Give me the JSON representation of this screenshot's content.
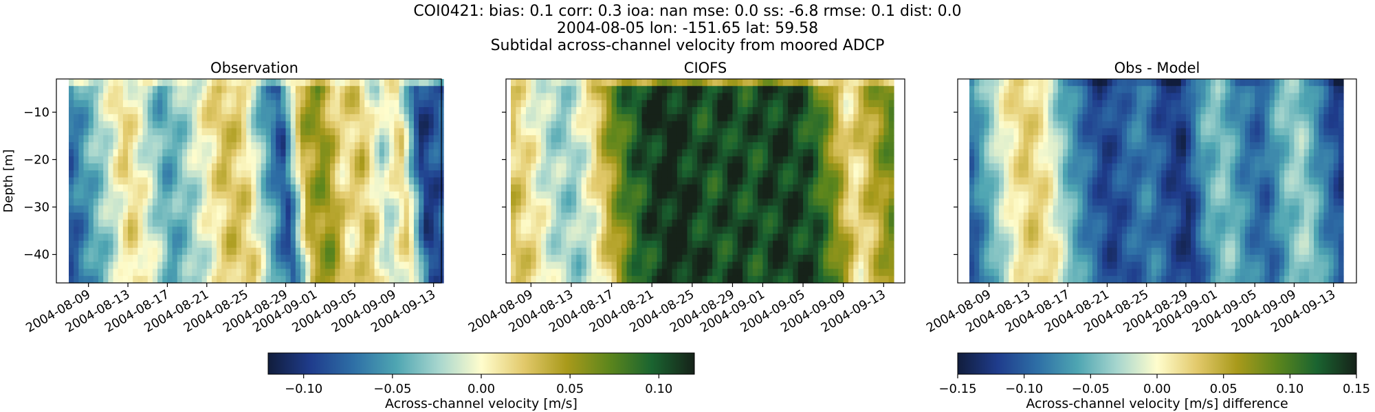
{
  "figure": {
    "title_lines": [
      "COI0421: bias: 0.1  corr: 0.3  ioa: nan  mse: 0.0  ss: -6.8  rmse: 0.1  dist: 0.0",
      "2004-08-05 lon: -151.65 lat: 59.58",
      "Subtidal across-channel velocity from moored ADCP"
    ]
  },
  "chart_data": [
    {
      "type": "heatmap",
      "title": "Observation",
      "ylabel": "Depth [m]",
      "xlabel": "",
      "x_range": [
        "2004-08-06",
        "2004-09-15"
      ],
      "ylim": [
        -46,
        -3
      ],
      "xtick_labels": [
        "2004-08-09",
        "2004-08-13",
        "2004-08-17",
        "2004-08-21",
        "2004-08-25",
        "2004-08-29",
        "2004-09-01",
        "2004-09-05",
        "2004-09-09",
        "2004-09-13"
      ],
      "ytick_labels": [
        "-10",
        "-20",
        "-30",
        "-40"
      ],
      "colormap": "delta",
      "clim": [
        -0.12,
        0.12
      ],
      "time_profile": [
        [
          "2004-08-07",
          -0.08
        ],
        [
          "2004-08-09",
          -0.05
        ],
        [
          "2004-08-11",
          -0.02
        ],
        [
          "2004-08-13",
          0.02
        ],
        [
          "2004-08-15",
          -0.01
        ],
        [
          "2004-08-17",
          -0.05
        ],
        [
          "2004-08-19",
          -0.03
        ],
        [
          "2004-08-21",
          0.0
        ],
        [
          "2004-08-23",
          0.03
        ],
        [
          "2004-08-25",
          0.02
        ],
        [
          "2004-08-27",
          -0.04
        ],
        [
          "2004-08-29",
          -0.09
        ],
        [
          "2004-08-31",
          0.04
        ],
        [
          "2004-09-02",
          0.06
        ],
        [
          "2004-09-04",
          0.01
        ],
        [
          "2004-09-06",
          0.03
        ],
        [
          "2004-09-08",
          -0.02
        ],
        [
          "2004-09-10",
          0.02
        ],
        [
          "2004-09-12",
          -0.1
        ],
        [
          "2004-09-14",
          -0.08
        ]
      ],
      "depth_weight": [
        [
          -4,
          1.0
        ],
        [
          -20,
          0.8
        ],
        [
          -35,
          0.55
        ],
        [
          -45,
          0.35
        ]
      ]
    },
    {
      "type": "heatmap",
      "title": "CIOFS",
      "ylabel": "",
      "xlabel": "",
      "x_range": [
        "2004-08-06",
        "2004-09-15"
      ],
      "ylim": [
        -46,
        -3
      ],
      "xtick_labels": [
        "2004-08-09",
        "2004-08-13",
        "2004-08-17",
        "2004-08-21",
        "2004-08-25",
        "2004-08-29",
        "2004-09-01",
        "2004-09-05",
        "2004-09-09",
        "2004-09-13"
      ],
      "ytick_labels": [],
      "colormap": "delta",
      "clim": [
        -0.12,
        0.12
      ],
      "time_profile": [
        [
          "2004-08-07",
          0.03
        ],
        [
          "2004-08-09",
          0.01
        ],
        [
          "2004-08-11",
          -0.02
        ],
        [
          "2004-08-13",
          -0.03
        ],
        [
          "2004-08-15",
          0.0
        ],
        [
          "2004-08-17",
          0.05
        ],
        [
          "2004-08-19",
          0.09
        ],
        [
          "2004-08-21",
          0.11
        ],
        [
          "2004-08-23",
          0.12
        ],
        [
          "2004-08-25",
          0.11
        ],
        [
          "2004-08-27",
          0.1
        ],
        [
          "2004-08-29",
          0.11
        ],
        [
          "2004-08-31",
          0.1
        ],
        [
          "2004-09-02",
          0.11
        ],
        [
          "2004-09-04",
          0.11
        ],
        [
          "2004-09-06",
          0.1
        ],
        [
          "2004-09-08",
          0.06
        ],
        [
          "2004-09-10",
          0.01
        ],
        [
          "2004-09-12",
          0.04
        ],
        [
          "2004-09-14",
          0.07
        ]
      ],
      "depth_weight": [
        [
          -4,
          1.0
        ],
        [
          -20,
          0.85
        ],
        [
          -35,
          0.6
        ],
        [
          -45,
          0.45
        ]
      ]
    },
    {
      "type": "heatmap",
      "title": "Obs - Model",
      "ylabel": "",
      "xlabel": "",
      "x_range": [
        "2004-08-06",
        "2004-09-15"
      ],
      "ylim": [
        -46,
        -3
      ],
      "xtick_labels": [
        "2004-08-09",
        "2004-08-13",
        "2004-08-17",
        "2004-08-21",
        "2004-08-25",
        "2004-08-29",
        "2004-09-01",
        "2004-09-05",
        "2004-09-09",
        "2004-09-13"
      ],
      "ytick_labels": [],
      "colormap": "delta",
      "clim": [
        -0.15,
        0.15
      ],
      "time_profile": [
        [
          "2004-08-07",
          -0.1
        ],
        [
          "2004-08-09",
          -0.05
        ],
        [
          "2004-08-11",
          0.0
        ],
        [
          "2004-08-13",
          0.03
        ],
        [
          "2004-08-15",
          0.01
        ],
        [
          "2004-08-17",
          -0.05
        ],
        [
          "2004-08-19",
          -0.09
        ],
        [
          "2004-08-21",
          -0.12
        ],
        [
          "2004-08-23",
          -0.1
        ],
        [
          "2004-08-25",
          -0.08
        ],
        [
          "2004-08-27",
          -0.11
        ],
        [
          "2004-08-29",
          -0.13
        ],
        [
          "2004-08-31",
          -0.06
        ],
        [
          "2004-09-02",
          -0.04
        ],
        [
          "2004-09-04",
          -0.08
        ],
        [
          "2004-09-06",
          -0.1
        ],
        [
          "2004-09-08",
          -0.05
        ],
        [
          "2004-09-10",
          -0.03
        ],
        [
          "2004-09-12",
          -0.08
        ],
        [
          "2004-09-14",
          -0.12
        ]
      ],
      "depth_weight": [
        [
          -4,
          1.0
        ],
        [
          -20,
          0.9
        ],
        [
          -35,
          1.0
        ],
        [
          -45,
          1.15
        ]
      ]
    }
  ],
  "colorbars": [
    {
      "label": "Across-channel velocity [m/s]",
      "range": [
        -0.12,
        0.12
      ],
      "tick_values": [
        -0.1,
        -0.05,
        0.0,
        0.05,
        0.1
      ],
      "tick_labels": [
        "−0.10",
        "−0.05",
        "0.00",
        "0.05",
        "0.10"
      ]
    },
    {
      "label": "Across-channel velocity [m/s] difference",
      "range": [
        -0.15,
        0.15
      ],
      "tick_values": [
        -0.15,
        -0.1,
        -0.05,
        0.0,
        0.05,
        0.1,
        0.15
      ],
      "tick_labels": [
        "−0.15",
        "−0.10",
        "−0.05",
        "0.00",
        "0.05",
        "0.10",
        "0.15"
      ]
    }
  ],
  "colors": {
    "delta_stops": [
      "#111d3c",
      "#1f3c8c",
      "#2e6fa6",
      "#4ea5b2",
      "#a7d6ce",
      "#fffdcd",
      "#e2c96b",
      "#a99a1b",
      "#5d861c",
      "#1a6430",
      "#162219"
    ]
  }
}
